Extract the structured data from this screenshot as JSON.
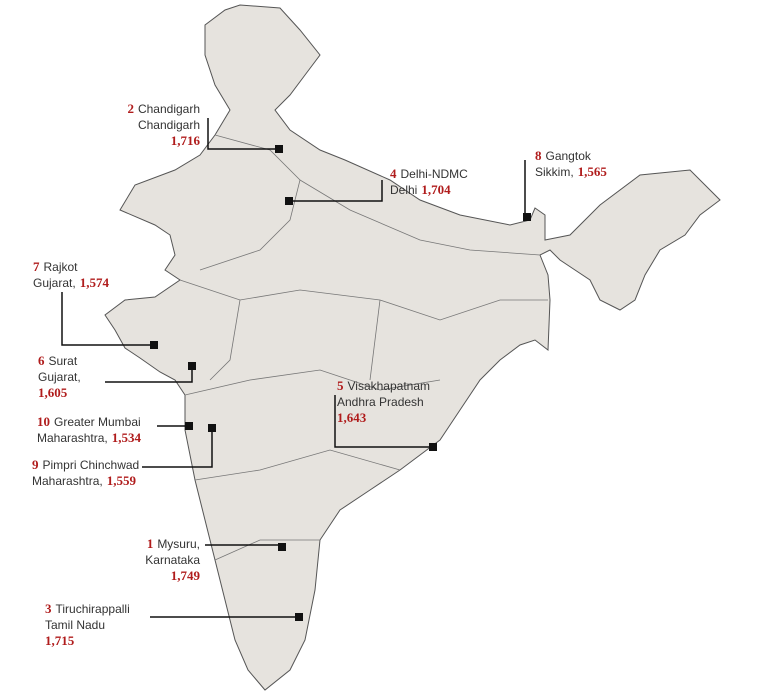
{
  "cities": [
    {
      "rank": "1",
      "city": "Mysuru,",
      "state": "Karnataka",
      "score": "1,749"
    },
    {
      "rank": "2",
      "city": "Chandigarh",
      "state": "Chandigarh",
      "score": "1,716"
    },
    {
      "rank": "3",
      "city": "Tiruchirappalli",
      "state": "Tamil Nadu",
      "score": "1,715"
    },
    {
      "rank": "4",
      "city": "Delhi-NDMC",
      "state": "Delhi",
      "score": "1,704"
    },
    {
      "rank": "5",
      "city": "Visakhapatnam",
      "state": "Andhra Pradesh",
      "score": "1,643"
    },
    {
      "rank": "6",
      "city": "Surat",
      "state": "Gujarat,",
      "score": "1,605"
    },
    {
      "rank": "7",
      "city": "Rajkot",
      "state": "Gujarat,",
      "score": "1,574"
    },
    {
      "rank": "8",
      "city": "Gangtok",
      "state": "Sikkim,",
      "score": "1,565"
    },
    {
      "rank": "9",
      "city": "Pimpri Chinchwad",
      "state": "Maharashtra,",
      "score": "1,559"
    },
    {
      "rank": "10",
      "city": "Greater Mumbai",
      "state": "Maharashtra,",
      "score": "1,534"
    }
  ]
}
